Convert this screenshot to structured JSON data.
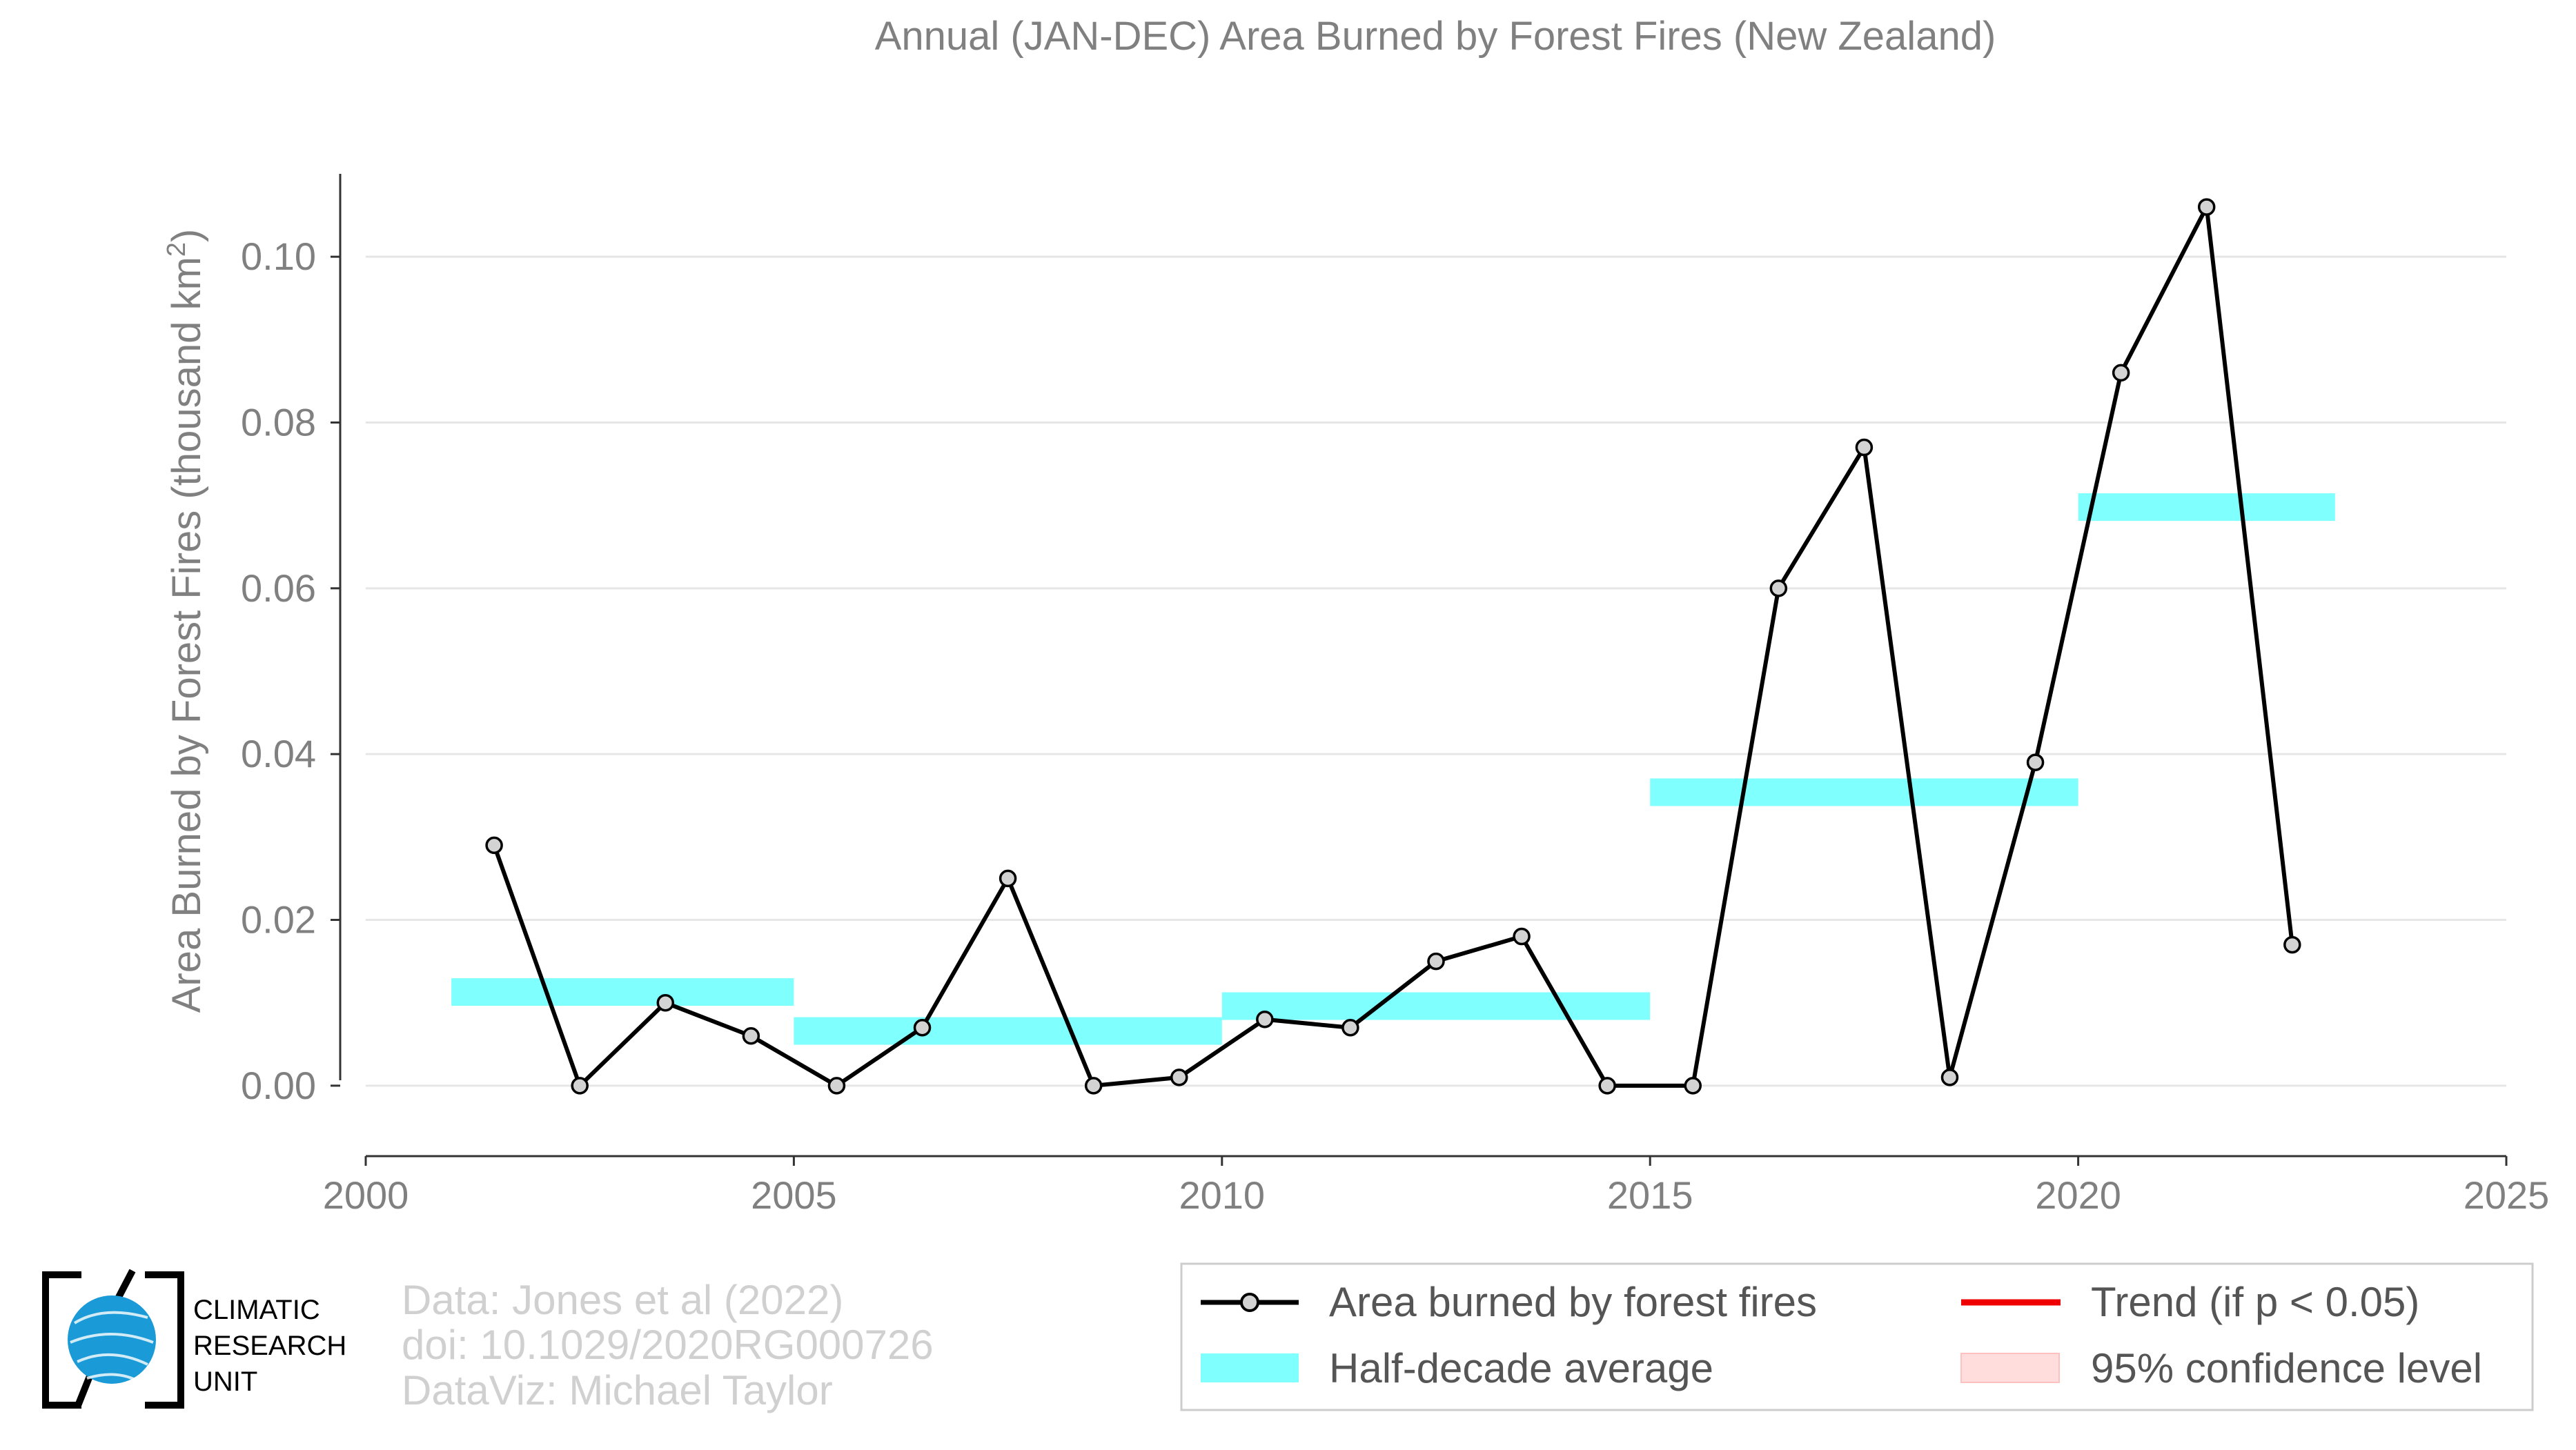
{
  "chart_data": {
    "type": "line",
    "title": "Annual (JAN-DEC) Area Burned by Forest Fires (New Zealand)",
    "xlabel": "",
    "ylabel": "Area Burned by Forest Fires (thousand km",
    "ylabel_superscript": "2",
    "ylabel_suffix": ")",
    "xlim": [
      2000,
      2025
    ],
    "ylim": [
      -0.0085,
      0.11
    ],
    "xticks": [
      2000,
      2005,
      2010,
      2015,
      2020,
      2025
    ],
    "xtick_labels": [
      "2000",
      "2005",
      "2010",
      "2015",
      "2020",
      "2025"
    ],
    "yticks": [
      0.0,
      0.02,
      0.04,
      0.06,
      0.08,
      0.1
    ],
    "ytick_labels": [
      "0.00",
      "0.02",
      "0.04",
      "0.06",
      "0.08",
      "0.10"
    ],
    "grid": "horizontal",
    "series": [
      {
        "name": "Area burned by forest fires",
        "color": "#000000",
        "marker_fill": "#d3d3d3",
        "x": [
          2001.5,
          2002.5,
          2003.5,
          2004.5,
          2005.5,
          2006.5,
          2007.5,
          2008.5,
          2009.5,
          2010.5,
          2011.5,
          2012.5,
          2013.5,
          2014.5,
          2015.5,
          2016.5,
          2017.5,
          2018.5,
          2019.5,
          2020.5,
          2021.5,
          2022.5
        ],
        "y": [
          0.029,
          0.0,
          0.01,
          0.006,
          0.0,
          0.007,
          0.025,
          0.0,
          0.001,
          0.008,
          0.007,
          0.015,
          0.018,
          0.0,
          0.0,
          0.06,
          0.077,
          0.001,
          0.039,
          0.086,
          0.106,
          0.017
        ]
      }
    ],
    "half_decade_averages": {
      "name": "Half-decade average",
      "color": "#80ffff",
      "segments": [
        {
          "x0": 2001,
          "x1": 2005,
          "y": 0.0113
        },
        {
          "x0": 2005,
          "x1": 2010,
          "y": 0.0066
        },
        {
          "x0": 2010,
          "x1": 2015,
          "y": 0.0096
        },
        {
          "x0": 2015,
          "x1": 2020,
          "y": 0.0354
        },
        {
          "x0": 2020,
          "x1": 2023,
          "y": 0.0698
        }
      ]
    },
    "legend": {
      "placement": "bottom-right",
      "entries": [
        {
          "label": "Area burned by forest fires",
          "kind": "line-marker",
          "color": "#000000"
        },
        {
          "label": "Trend (if p < 0.05)",
          "kind": "line",
          "color": "#ee0000"
        },
        {
          "label": "Half-decade average",
          "kind": "band",
          "color": "#80ffff"
        },
        {
          "label": "95% confidence level",
          "kind": "band",
          "color": "#ffdddd"
        }
      ]
    }
  },
  "credits": {
    "lines": [
      "Data: Jones et al (2022)",
      "doi: 10.1029/2020RG000726",
      "DataViz: Michael Taylor"
    ]
  },
  "logo": {
    "lines": [
      "CLIMATIC",
      "RESEARCH",
      "UNIT"
    ],
    "globe_color": "#1a9ad6"
  }
}
